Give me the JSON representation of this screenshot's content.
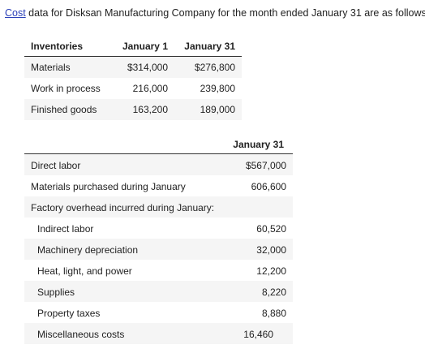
{
  "intro": {
    "link_text": "Cost",
    "rest_text": " data for Disksan Manufacturing Company for the month ended January 31 are as follows:"
  },
  "inventories": {
    "headers": {
      "label": "Inventories",
      "jan1": "January 1",
      "jan31": "January 31"
    },
    "rows": [
      {
        "label": "Materials",
        "jan1": "$314,000",
        "jan31": "$276,800"
      },
      {
        "label": "Work in process",
        "jan1": "216,000",
        "jan31": "239,800"
      },
      {
        "label": "Finished goods",
        "jan1": "163,200",
        "jan31": "189,000"
      }
    ]
  },
  "costs": {
    "header": "January 31",
    "rows": [
      {
        "label": "Direct labor",
        "value": "$567,000"
      },
      {
        "label": "Materials purchased during January",
        "value": "606,600"
      },
      {
        "label": "Factory overhead incurred during January:",
        "value": ""
      },
      {
        "label": "Indirect labor",
        "value": "60,520"
      },
      {
        "label": "Machinery depreciation",
        "value": "32,000"
      },
      {
        "label": "Heat, light, and power",
        "value": "12,200"
      },
      {
        "label": "Supplies",
        "value": "8,220"
      },
      {
        "label": "Property taxes",
        "value": "8,880"
      },
      {
        "label": "Miscellaneous costs",
        "value": "16,460"
      }
    ]
  }
}
